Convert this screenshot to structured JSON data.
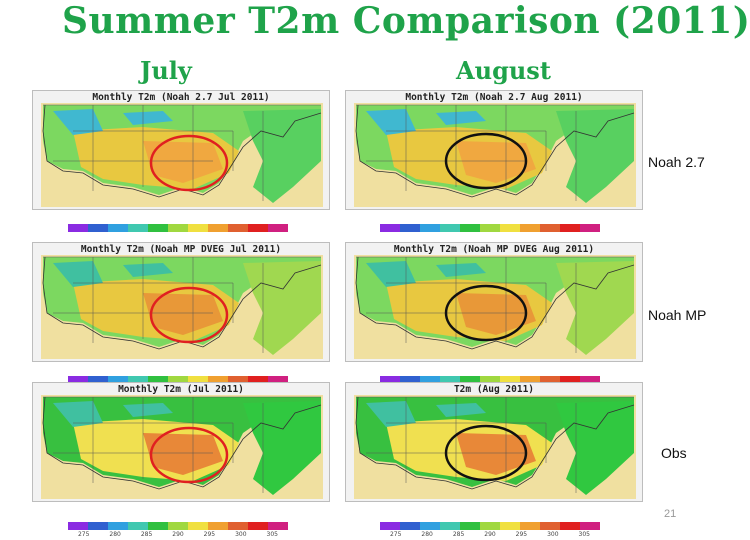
{
  "title": "Summer T2m Comparison (2011)",
  "columns": {
    "left": "July",
    "right": "August"
  },
  "rows": [
    {
      "label": "Noah 2.7",
      "left_title": "Monthly T2m (Noah 2.7 Jul 2011)",
      "right_title": "Monthly T2m (Noah 2.7 Aug 2011)"
    },
    {
      "label": "Noah MP",
      "left_title": "Monthly T2m (Noah MP DVEG Jul 2011)",
      "right_title": "Monthly T2m (Noah MP DVEG Aug 2011)"
    },
    {
      "label": "Obs",
      "left_title": "Monthly T2m (Jul 2011)",
      "right_title": "T2m (Aug 2011)"
    }
  ],
  "circle_colors": {
    "july": "#e02020",
    "august": "#111111"
  },
  "colorbar": {
    "colors": [
      "#8a2be2",
      "#3060d0",
      "#30a0e0",
      "#40c8b0",
      "#30c040",
      "#a0d840",
      "#f0e040",
      "#f0a030",
      "#e06030",
      "#e02020",
      "#d02080"
    ],
    "labels": [
      "275",
      "280",
      "285",
      "290",
      "295",
      "300",
      "305"
    ]
  },
  "page_number": "21"
}
